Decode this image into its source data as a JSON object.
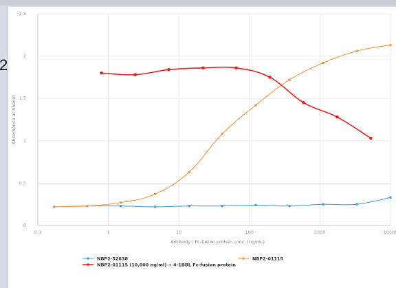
{
  "page": {
    "clipped_text": "2"
  },
  "chart_data": {
    "type": "line",
    "title": "",
    "xlabel": "Antibody / Fc-fusion protein conc. (ng/mL)",
    "ylabel": "Absorbance at 450nm",
    "xscale": "log",
    "xlim": [
      0.1,
      10000
    ],
    "ylim": [
      0,
      2.5
    ],
    "xticks": [
      0.1,
      1,
      10,
      100,
      1000,
      10000
    ],
    "xtick_labels": [
      "0.1",
      "1",
      "10",
      "100",
      "1000",
      "10000"
    ],
    "yticks": [
      0,
      0.5,
      1,
      1.5,
      2,
      2.5
    ],
    "ytick_labels": [
      "0",
      "0.5",
      "1",
      "1.5",
      "2",
      "2.5"
    ],
    "grid": true,
    "legend_position": "bottom",
    "series": [
      {
        "name": "NBP2-52638",
        "color": "#4a9fd8",
        "x": [
          0.17,
          0.5,
          1.5,
          4.6,
          14,
          41,
          123,
          370,
          1111,
          3333,
          10000
        ],
        "y": [
          0.22,
          0.23,
          0.23,
          0.22,
          0.23,
          0.23,
          0.24,
          0.23,
          0.25,
          0.25,
          0.33
        ]
      },
      {
        "name": "NBP2-01115",
        "color": "#f2994a",
        "x": [
          0.17,
          0.5,
          1.5,
          4.6,
          14,
          41,
          123,
          370,
          1111,
          3333,
          10000
        ],
        "y": [
          0.22,
          0.23,
          0.27,
          0.37,
          0.63,
          1.08,
          1.42,
          1.72,
          1.92,
          2.06,
          2.13
        ]
      },
      {
        "name": "NBP2-01115 (10,000 ng/ml) + 4-1BBL Fc-fusion protein",
        "color": "#e02424",
        "x": [
          0.8,
          2.4,
          7.2,
          22,
          65,
          195,
          585,
          1755,
          5266
        ],
        "y": [
          1.8,
          1.78,
          1.84,
          1.86,
          1.86,
          1.75,
          1.45,
          1.28,
          1.03
        ]
      }
    ]
  }
}
